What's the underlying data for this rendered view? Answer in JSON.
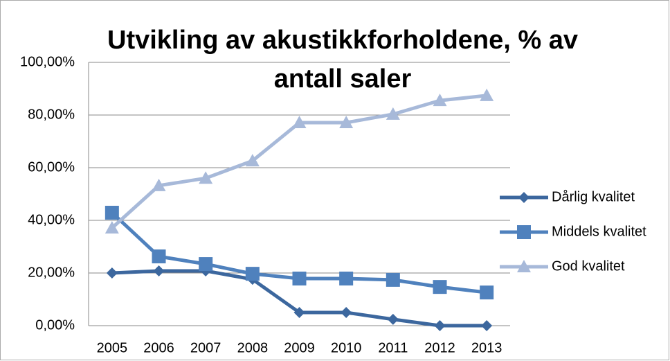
{
  "chart_data": {
    "type": "line",
    "title": "Utvikling av akustikkforholdene, % av antall saler",
    "categories": [
      "2005",
      "2006",
      "2007",
      "2008",
      "2009",
      "2010",
      "2011",
      "2012",
      "2013"
    ],
    "series": [
      {
        "name": "Dårlig kvalitet",
        "color": "#3c679e",
        "marker": "diamond",
        "values": [
          20,
          20.8,
          20.8,
          17.6,
          5,
          5,
          2.4,
          0,
          0
        ]
      },
      {
        "name": "Middels kvalitet",
        "color": "#4f81bd",
        "marker": "square",
        "values": [
          42.9,
          26.3,
          23.4,
          19.7,
          17.9,
          17.9,
          17.4,
          14.7,
          12.6
        ]
      },
      {
        "name": "God kvalitet",
        "color": "#a7b9d9",
        "marker": "triangle",
        "values": [
          37.1,
          53.2,
          56,
          62.6,
          77.1,
          77.1,
          80.3,
          85.5,
          87.4
        ]
      }
    ],
    "ylim": [
      0,
      100
    ],
    "yticks": [
      {
        "value": 0,
        "label": "0,00%"
      },
      {
        "value": 20,
        "label": "20,00%"
      },
      {
        "value": 40,
        "label": "40,00%"
      },
      {
        "value": 60,
        "label": "60,00%"
      },
      {
        "value": 80,
        "label": "80,00%"
      },
      {
        "value": 100,
        "label": "100,00%"
      }
    ],
    "grid": true,
    "legend": "right"
  }
}
